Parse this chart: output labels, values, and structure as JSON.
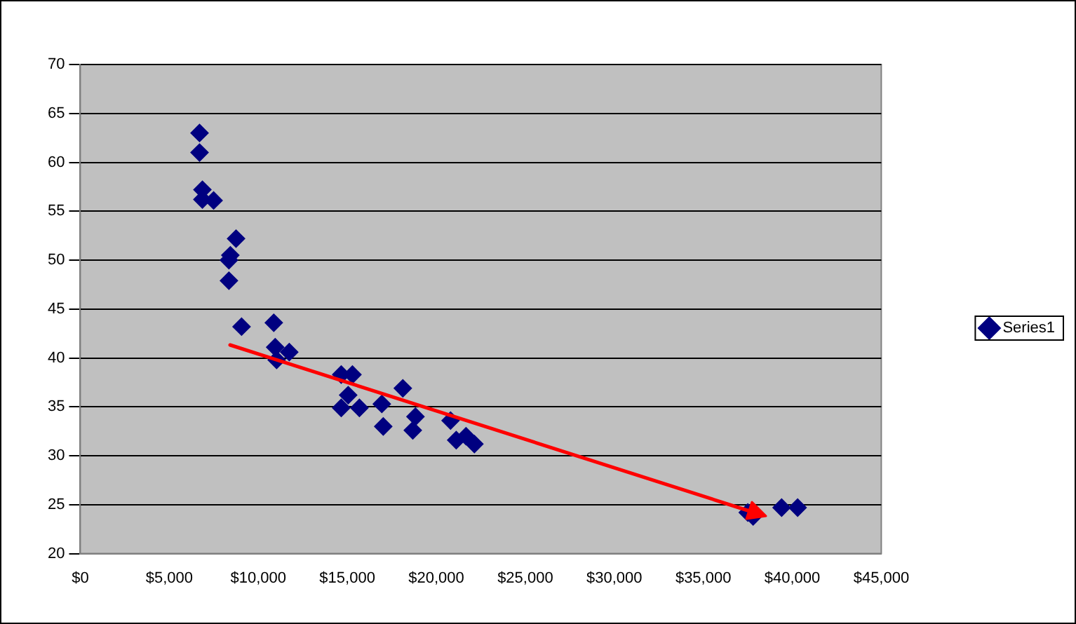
{
  "chart_data": {
    "type": "scatter",
    "grid": "y",
    "legend": "right",
    "xlim": [
      0,
      45000
    ],
    "ylim": [
      20,
      70
    ],
    "xticks": [
      {
        "value": 0,
        "label": "$0"
      },
      {
        "value": 5000,
        "label": "$5,000"
      },
      {
        "value": 10000,
        "label": "$10,000"
      },
      {
        "value": 15000,
        "label": "$15,000"
      },
      {
        "value": 20000,
        "label": "$20,000"
      },
      {
        "value": 25000,
        "label": "$25,000"
      },
      {
        "value": 30000,
        "label": "$30,000"
      },
      {
        "value": 35000,
        "label": "$35,000"
      },
      {
        "value": 40000,
        "label": "$40,000"
      },
      {
        "value": 45000,
        "label": "$45,000"
      }
    ],
    "yticks": [
      20,
      25,
      30,
      35,
      40,
      45,
      50,
      55,
      60,
      65,
      70
    ],
    "series": [
      {
        "name": "Series1",
        "color": "#000080",
        "marker": "diamond",
        "x": [
          6700,
          6700,
          6860,
          6860,
          7490,
          8750,
          8430,
          8350,
          8350,
          9060,
          10870,
          10950,
          11740,
          11030,
          14660,
          15290,
          15050,
          14660,
          15680,
          16940,
          18120,
          17020,
          18830,
          18680,
          20800,
          21120,
          21670,
          22140,
          37500,
          37800,
          39400,
          40300
        ],
        "values": [
          63.0,
          61.0,
          57.2,
          56.2,
          56.1,
          52.2,
          50.5,
          50.0,
          47.9,
          43.2,
          43.6,
          41.1,
          40.6,
          39.8,
          38.3,
          38.3,
          36.2,
          34.9,
          34.9,
          35.3,
          36.9,
          33.0,
          34.0,
          32.6,
          33.6,
          31.6,
          32.0,
          31.2,
          24.2,
          23.8,
          24.7,
          24.7
        ]
      }
    ]
  }
}
